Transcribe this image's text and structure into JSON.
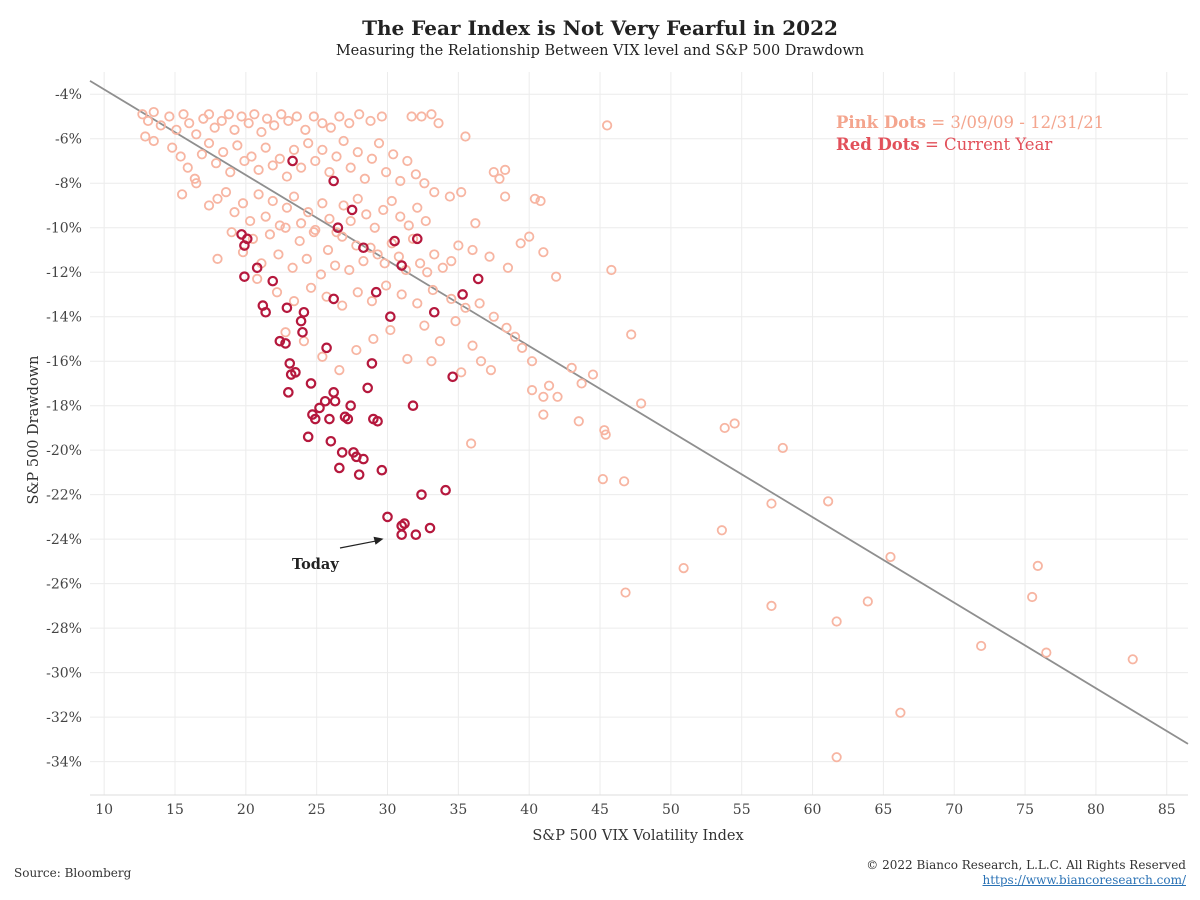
{
  "header": {
    "title": "The Fear Index is Not Very Fearful in 2022",
    "subtitle": "Measuring the Relationship Between VIX level and S&P 500 Drawdown"
  },
  "footer": {
    "source": "Source: Bloomberg",
    "copyright": "© 2022 Bianco Research, L.L.C. All Rights Reserved",
    "url": "https://www.biancoresearch.com/"
  },
  "chart_data": {
    "type": "scatter",
    "title": "The Fear Index is Not Very Fearful in 2022",
    "subtitle": "Measuring the Relationship Between VIX level and S&P 500 Drawdown",
    "xlabel": "S&P 500 VIX Volatility Index",
    "ylabel": "S&P 500 Drawdown",
    "xlim": [
      9,
      86.5
    ],
    "ylim": [
      -35.5,
      -3
    ],
    "x_ticks": [
      10,
      15,
      20,
      25,
      30,
      35,
      40,
      45,
      50,
      55,
      60,
      65,
      70,
      75,
      80,
      85
    ],
    "y_ticks": [
      -4,
      -6,
      -8,
      -10,
      -12,
      -14,
      -16,
      -18,
      -20,
      -22,
      -24,
      -26,
      -28,
      -30,
      -32,
      -34
    ],
    "y_tick_suffix": "%",
    "grid": true,
    "legend": {
      "placement": "top-right",
      "items": [
        {
          "key": "Pink Dots",
          "desc": "3/09/09 - 12/31/21",
          "color": "#f4a58e"
        },
        {
          "key": "Red Dots",
          "desc": "Current Year",
          "color": "#e2505a"
        }
      ]
    },
    "trendline": {
      "x": [
        9,
        86.5
      ],
      "y": [
        -3.4,
        -33.2
      ],
      "color": "#8f8f8f"
    },
    "annotation": {
      "text": "Today",
      "arrow_to": [
        30,
        -23.8
      ]
    },
    "series": [
      {
        "name": "Pink Dots",
        "color": "#f7b5a2",
        "points": [
          [
            12.7,
            -4.9
          ],
          [
            13.1,
            -5.2
          ],
          [
            13.5,
            -4.8
          ],
          [
            14.0,
            -5.4
          ],
          [
            14.6,
            -5.0
          ],
          [
            15.1,
            -5.6
          ],
          [
            15.6,
            -4.9
          ],
          [
            16.0,
            -5.3
          ],
          [
            16.5,
            -5.8
          ],
          [
            17.0,
            -5.1
          ],
          [
            17.4,
            -4.9
          ],
          [
            17.8,
            -5.5
          ],
          [
            18.3,
            -5.2
          ],
          [
            18.8,
            -4.9
          ],
          [
            19.2,
            -5.6
          ],
          [
            19.7,
            -5.0
          ],
          [
            20.2,
            -5.3
          ],
          [
            20.6,
            -4.9
          ],
          [
            21.1,
            -5.7
          ],
          [
            21.5,
            -5.1
          ],
          [
            22.0,
            -5.4
          ],
          [
            22.5,
            -4.9
          ],
          [
            23.0,
            -5.2
          ],
          [
            23.6,
            -5.0
          ],
          [
            24.2,
            -5.6
          ],
          [
            24.8,
            -5.0
          ],
          [
            25.4,
            -5.3
          ],
          [
            26.0,
            -5.5
          ],
          [
            26.6,
            -5.0
          ],
          [
            27.3,
            -5.3
          ],
          [
            28.0,
            -4.9
          ],
          [
            28.8,
            -5.2
          ],
          [
            29.6,
            -5.0
          ],
          [
            31.7,
            -5.0
          ],
          [
            32.4,
            -5.0
          ],
          [
            33.1,
            -4.9
          ],
          [
            33.6,
            -5.3
          ],
          [
            12.9,
            -5.9
          ],
          [
            13.5,
            -6.1
          ],
          [
            14.8,
            -6.4
          ],
          [
            15.4,
            -6.8
          ],
          [
            15.9,
            -7.3
          ],
          [
            16.4,
            -7.8
          ],
          [
            16.9,
            -6.7
          ],
          [
            17.4,
            -6.2
          ],
          [
            17.9,
            -7.1
          ],
          [
            18.4,
            -6.6
          ],
          [
            18.9,
            -7.5
          ],
          [
            19.4,
            -6.3
          ],
          [
            19.9,
            -7.0
          ],
          [
            20.4,
            -6.8
          ],
          [
            20.9,
            -7.4
          ],
          [
            21.4,
            -6.4
          ],
          [
            21.9,
            -7.2
          ],
          [
            22.4,
            -6.9
          ],
          [
            22.9,
            -7.7
          ],
          [
            23.4,
            -6.5
          ],
          [
            23.9,
            -7.3
          ],
          [
            24.4,
            -6.2
          ],
          [
            24.9,
            -7.0
          ],
          [
            25.4,
            -6.5
          ],
          [
            25.9,
            -7.5
          ],
          [
            26.4,
            -6.8
          ],
          [
            26.9,
            -6.1
          ],
          [
            27.4,
            -7.3
          ],
          [
            27.9,
            -6.6
          ],
          [
            28.4,
            -7.8
          ],
          [
            28.9,
            -6.9
          ],
          [
            29.4,
            -6.2
          ],
          [
            29.9,
            -7.5
          ],
          [
            30.4,
            -6.7
          ],
          [
            30.9,
            -7.9
          ],
          [
            31.4,
            -7.0
          ],
          [
            32.0,
            -7.6
          ],
          [
            32.6,
            -8.0
          ],
          [
            35.5,
            -5.9
          ],
          [
            37.5,
            -7.5
          ],
          [
            37.9,
            -7.8
          ],
          [
            38.3,
            -7.4
          ],
          [
            15.5,
            -8.5
          ],
          [
            16.5,
            -8.0
          ],
          [
            17.4,
            -9.0
          ],
          [
            18.0,
            -8.7
          ],
          [
            18.6,
            -8.4
          ],
          [
            19.2,
            -9.3
          ],
          [
            19.8,
            -8.9
          ],
          [
            20.3,
            -9.7
          ],
          [
            20.9,
            -8.5
          ],
          [
            21.4,
            -9.5
          ],
          [
            21.9,
            -8.8
          ],
          [
            22.4,
            -9.9
          ],
          [
            22.9,
            -9.1
          ],
          [
            23.4,
            -8.6
          ],
          [
            23.9,
            -9.8
          ],
          [
            24.4,
            -9.3
          ],
          [
            24.9,
            -10.1
          ],
          [
            25.4,
            -8.9
          ],
          [
            25.9,
            -9.6
          ],
          [
            26.4,
            -10.2
          ],
          [
            26.9,
            -9.0
          ],
          [
            27.4,
            -9.7
          ],
          [
            27.9,
            -8.7
          ],
          [
            28.5,
            -9.4
          ],
          [
            29.1,
            -10.0
          ],
          [
            29.7,
            -9.2
          ],
          [
            30.3,
            -8.8
          ],
          [
            30.9,
            -9.5
          ],
          [
            31.5,
            -9.9
          ],
          [
            32.1,
            -9.1
          ],
          [
            32.7,
            -9.7
          ],
          [
            33.3,
            -8.4
          ],
          [
            34.4,
            -8.6
          ],
          [
            35.2,
            -8.4
          ],
          [
            36.2,
            -9.8
          ],
          [
            38.3,
            -8.6
          ],
          [
            40.4,
            -8.7
          ],
          [
            40.8,
            -8.8
          ],
          [
            18.0,
            -11.4
          ],
          [
            19.0,
            -10.2
          ],
          [
            19.8,
            -11.1
          ],
          [
            20.5,
            -10.5
          ],
          [
            21.1,
            -11.6
          ],
          [
            21.7,
            -10.3
          ],
          [
            22.3,
            -11.2
          ],
          [
            22.8,
            -10.0
          ],
          [
            23.3,
            -11.8
          ],
          [
            23.8,
            -10.6
          ],
          [
            24.3,
            -11.4
          ],
          [
            24.8,
            -10.2
          ],
          [
            25.3,
            -12.1
          ],
          [
            25.8,
            -11.0
          ],
          [
            26.3,
            -11.7
          ],
          [
            26.8,
            -10.4
          ],
          [
            27.3,
            -11.9
          ],
          [
            27.8,
            -10.8
          ],
          [
            28.3,
            -11.5
          ],
          [
            28.8,
            -10.9
          ],
          [
            29.3,
            -11.2
          ],
          [
            29.8,
            -11.6
          ],
          [
            30.3,
            -10.7
          ],
          [
            30.8,
            -11.3
          ],
          [
            31.3,
            -11.9
          ],
          [
            31.8,
            -10.5
          ],
          [
            32.3,
            -11.6
          ],
          [
            32.8,
            -12.0
          ],
          [
            33.3,
            -11.2
          ],
          [
            33.9,
            -11.8
          ],
          [
            34.5,
            -11.5
          ],
          [
            35.0,
            -10.8
          ],
          [
            36.0,
            -11.0
          ],
          [
            37.2,
            -11.3
          ],
          [
            38.5,
            -11.8
          ],
          [
            39.4,
            -10.7
          ],
          [
            40.0,
            -10.4
          ],
          [
            41.0,
            -11.1
          ],
          [
            41.9,
            -12.2
          ],
          [
            45.8,
            -11.9
          ],
          [
            20.8,
            -12.3
          ],
          [
            22.2,
            -12.9
          ],
          [
            23.4,
            -13.3
          ],
          [
            24.6,
            -12.7
          ],
          [
            25.7,
            -13.1
          ],
          [
            26.8,
            -13.5
          ],
          [
            27.9,
            -12.9
          ],
          [
            28.9,
            -13.3
          ],
          [
            29.9,
            -12.6
          ],
          [
            31.0,
            -13.0
          ],
          [
            32.1,
            -13.4
          ],
          [
            33.2,
            -12.8
          ],
          [
            34.5,
            -13.2
          ],
          [
            35.5,
            -13.6
          ],
          [
            36.5,
            -13.4
          ],
          [
            37.5,
            -14.0
          ],
          [
            38.4,
            -14.5
          ],
          [
            39.0,
            -14.9
          ],
          [
            39.5,
            -15.4
          ],
          [
            40.2,
            -16.0
          ],
          [
            22.8,
            -14.7
          ],
          [
            24.1,
            -15.1
          ],
          [
            25.4,
            -15.8
          ],
          [
            26.6,
            -16.4
          ],
          [
            27.8,
            -15.5
          ],
          [
            29.0,
            -15.0
          ],
          [
            30.2,
            -14.6
          ],
          [
            31.4,
            -15.9
          ],
          [
            32.6,
            -14.4
          ],
          [
            33.7,
            -15.1
          ],
          [
            34.8,
            -14.2
          ],
          [
            36.0,
            -15.3
          ],
          [
            36.6,
            -16.0
          ],
          [
            37.3,
            -16.4
          ],
          [
            33.1,
            -16.0
          ],
          [
            35.2,
            -16.5
          ],
          [
            40.2,
            -17.3
          ],
          [
            41.0,
            -17.6
          ],
          [
            41.4,
            -17.1
          ],
          [
            41.0,
            -18.4
          ],
          [
            42.0,
            -17.6
          ],
          [
            43.0,
            -16.3
          ],
          [
            43.7,
            -17.0
          ],
          [
            44.5,
            -16.6
          ],
          [
            43.5,
            -18.7
          ],
          [
            35.9,
            -19.7
          ],
          [
            45.3,
            -19.1
          ],
          [
            45.4,
            -19.3
          ],
          [
            47.2,
            -14.8
          ],
          [
            47.9,
            -17.9
          ],
          [
            45.2,
            -21.3
          ],
          [
            46.7,
            -21.4
          ],
          [
            45.5,
            -5.4
          ],
          [
            50.9,
            -25.3
          ],
          [
            53.6,
            -23.6
          ],
          [
            53.8,
            -19.0
          ],
          [
            54.5,
            -18.8
          ],
          [
            57.1,
            -22.4
          ],
          [
            57.1,
            -27.0
          ],
          [
            57.9,
            -19.9
          ],
          [
            61.1,
            -22.3
          ],
          [
            61.7,
            -27.7
          ],
          [
            61.7,
            -33.8
          ],
          [
            63.9,
            -26.8
          ],
          [
            65.5,
            -24.8
          ],
          [
            66.2,
            -31.8
          ],
          [
            71.9,
            -28.8
          ],
          [
            75.5,
            -26.6
          ],
          [
            75.9,
            -25.2
          ],
          [
            76.5,
            -29.1
          ],
          [
            82.6,
            -29.4
          ],
          [
            46.8,
            -26.4
          ]
        ]
      },
      {
        "name": "Red Dots",
        "color": "#b5183d",
        "points": [
          [
            19.7,
            -10.3
          ],
          [
            19.9,
            -10.8
          ],
          [
            20.1,
            -10.5
          ],
          [
            19.9,
            -12.2
          ],
          [
            20.8,
            -11.8
          ],
          [
            21.2,
            -13.5
          ],
          [
            21.4,
            -13.8
          ],
          [
            21.9,
            -12.4
          ],
          [
            22.4,
            -15.1
          ],
          [
            22.8,
            -15.2
          ],
          [
            22.9,
            -13.6
          ],
          [
            23.1,
            -16.1
          ],
          [
            23.2,
            -16.6
          ],
          [
            23.0,
            -17.4
          ],
          [
            23.5,
            -16.5
          ],
          [
            23.9,
            -14.2
          ],
          [
            24.0,
            -14.7
          ],
          [
            24.1,
            -13.8
          ],
          [
            24.4,
            -19.4
          ],
          [
            24.6,
            -17.0
          ],
          [
            24.7,
            -18.4
          ],
          [
            24.9,
            -18.6
          ],
          [
            25.2,
            -18.1
          ],
          [
            25.6,
            -17.8
          ],
          [
            25.7,
            -15.4
          ],
          [
            25.9,
            -18.6
          ],
          [
            26.0,
            -19.6
          ],
          [
            26.2,
            -17.4
          ],
          [
            26.3,
            -17.8
          ],
          [
            26.6,
            -20.8
          ],
          [
            26.8,
            -20.1
          ],
          [
            27.0,
            -18.5
          ],
          [
            27.2,
            -18.6
          ],
          [
            27.4,
            -18.0
          ],
          [
            27.6,
            -20.1
          ],
          [
            27.8,
            -20.3
          ],
          [
            28.0,
            -21.1
          ],
          [
            28.3,
            -20.4
          ],
          [
            28.6,
            -17.2
          ],
          [
            28.9,
            -16.1
          ],
          [
            29.0,
            -18.6
          ],
          [
            29.3,
            -18.7
          ],
          [
            29.6,
            -20.9
          ],
          [
            30.0,
            -23.0
          ],
          [
            31.0,
            -23.4
          ],
          [
            31.2,
            -23.3
          ],
          [
            32.0,
            -23.8
          ],
          [
            33.0,
            -23.5
          ],
          [
            32.4,
            -22.0
          ],
          [
            34.1,
            -21.8
          ],
          [
            31.0,
            -23.8
          ],
          [
            26.2,
            -7.9
          ],
          [
            26.5,
            -10.0
          ],
          [
            27.5,
            -9.2
          ],
          [
            28.3,
            -10.9
          ],
          [
            29.2,
            -12.9
          ],
          [
            30.5,
            -10.6
          ],
          [
            31.0,
            -11.7
          ],
          [
            32.1,
            -10.5
          ],
          [
            33.3,
            -13.8
          ],
          [
            34.6,
            -16.7
          ],
          [
            35.3,
            -13.0
          ],
          [
            36.4,
            -12.3
          ],
          [
            30.2,
            -14.0
          ],
          [
            31.8,
            -18.0
          ],
          [
            26.2,
            -13.2
          ],
          [
            23.3,
            -7.0
          ]
        ]
      }
    ]
  }
}
